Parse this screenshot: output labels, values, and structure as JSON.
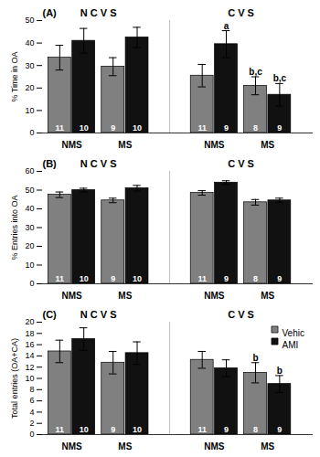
{
  "chart_data": [
    {
      "type": "bar",
      "title": "(A)",
      "ylabel": "% Time in OA",
      "categories": [
        "NMS",
        "MS",
        "NMS",
        "MS"
      ],
      "section_labels": [
        "N C V S",
        "C V S"
      ],
      "series": [
        {
          "name": "Vehic",
          "color": "#808080",
          "values": [
            33.5,
            29.5,
            25.5,
            21.0
          ],
          "errors": [
            5.5,
            4.0,
            5.0,
            4.0
          ],
          "n": [
            11,
            9,
            11,
            8
          ]
        },
        {
          "name": "AMI",
          "color": "#111111",
          "values": [
            41.0,
            42.5,
            39.5,
            17.0
          ],
          "errors": [
            5.5,
            4.5,
            6.0,
            5.0
          ],
          "n": [
            10,
            10,
            9,
            9
          ]
        }
      ],
      "annotations": [
        {
          "series": "AMI",
          "index": 2,
          "text": "a"
        },
        {
          "series": "Vehic",
          "index": 3,
          "text": "b,c"
        },
        {
          "series": "AMI",
          "index": 3,
          "text": "b,c"
        }
      ],
      "ylim": [
        0,
        50
      ],
      "yticks": [
        0,
        10,
        20,
        30,
        40,
        50
      ],
      "grid": false
    },
    {
      "type": "bar",
      "title": "(B)",
      "ylabel": "% Entries into OA",
      "categories": [
        "NMS",
        "MS",
        "NMS",
        "MS"
      ],
      "section_labels": [
        "N C V S",
        "C V S"
      ],
      "series": [
        {
          "name": "Vehic",
          "color": "#808080",
          "values": [
            47.5,
            44.5,
            48.5,
            43.5
          ],
          "errors": [
            1.5,
            1.2,
            1.2,
            1.5
          ],
          "n": [
            11,
            9,
            11,
            8
          ]
        },
        {
          "name": "AMI",
          "color": "#111111",
          "values": [
            50.0,
            51.0,
            54.0,
            44.5
          ],
          "errors": [
            1.0,
            1.5,
            1.0,
            1.2
          ],
          "n": [
            10,
            10,
            9,
            9
          ]
        }
      ],
      "annotations": [],
      "ylim": [
        0,
        60
      ],
      "yticks": [
        0,
        10,
        20,
        30,
        40,
        50,
        60
      ],
      "grid": false
    },
    {
      "type": "bar",
      "title": "(C)",
      "ylabel": "Total entries (OA+CA)",
      "categories": [
        "NMS",
        "MS",
        "NMS",
        "MS"
      ],
      "section_labels": [
        "N C V S",
        "C V S"
      ],
      "series": [
        {
          "name": "Vehic",
          "color": "#808080",
          "values": [
            14.8,
            12.8,
            13.3,
            11.0
          ],
          "errors": [
            2.0,
            2.0,
            1.5,
            1.8
          ],
          "n": [
            11,
            9,
            11,
            8
          ]
        },
        {
          "name": "AMI",
          "color": "#111111",
          "values": [
            17.0,
            14.5,
            11.8,
            9.0
          ],
          "errors": [
            2.0,
            2.0,
            1.5,
            1.5
          ],
          "n": [
            10,
            10,
            9,
            9
          ]
        }
      ],
      "annotations": [
        {
          "series": "Vehic",
          "index": 3,
          "text": "b"
        },
        {
          "series": "AMI",
          "index": 3,
          "text": "b"
        }
      ],
      "ylim": [
        0,
        20
      ],
      "yticks": [
        0,
        2,
        4,
        6,
        8,
        10,
        12,
        14,
        16,
        18,
        20
      ],
      "grid": false,
      "legend": "upper right"
    }
  ]
}
